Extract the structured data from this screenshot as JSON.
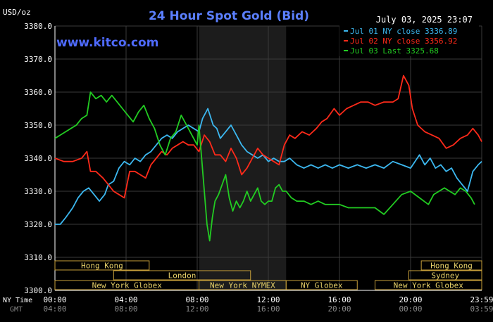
{
  "chart_data": {
    "type": "line",
    "title": "24 Hour Spot Gold (Bid)",
    "unit_label": "USD/oz",
    "timestamp": "July 03, 2025 23:07",
    "watermark": "www.kitco.com",
    "ylim": [
      3300,
      3380
    ],
    "yticks": [
      {
        "value": 3300,
        "label": "3300.0"
      },
      {
        "value": 3310,
        "label": "3310.0"
      },
      {
        "value": 3320,
        "label": "3320.0"
      },
      {
        "value": 3330,
        "label": "3330.0"
      },
      {
        "value": 3340,
        "label": "3340.0"
      },
      {
        "value": 3350,
        "label": "3350.0"
      },
      {
        "value": 3360,
        "label": "3360.0"
      },
      {
        "value": 3370,
        "label": "3370.0"
      },
      {
        "value": 3380,
        "label": "3380.0"
      }
    ],
    "xlim": [
      0,
      24
    ],
    "x_axis_rows": [
      {
        "name": "NY Time",
        "color": "#ffffff",
        "labels": [
          {
            "x": 0,
            "text": "00:00"
          },
          {
            "x": 4,
            "text": "04:00"
          },
          {
            "x": 8,
            "text": "08:00"
          },
          {
            "x": 12,
            "text": "12:00"
          },
          {
            "x": 16,
            "text": "16:00"
          },
          {
            "x": 20,
            "text": "20:00"
          },
          {
            "x": 24,
            "text": "23:59"
          }
        ]
      },
      {
        "name": "GMT",
        "color": "#8c8c8c",
        "labels": [
          {
            "x": 0,
            "text": "04:00"
          },
          {
            "x": 4,
            "text": "08:00"
          },
          {
            "x": 8,
            "text": "12:00"
          },
          {
            "x": 12,
            "text": "16:00"
          },
          {
            "x": 16,
            "text": "20:00"
          },
          {
            "x": 20,
            "text": "00:00"
          },
          {
            "x": 24,
            "text": "03:59"
          }
        ]
      }
    ],
    "highlight_range": [
      8.1,
      13.0
    ],
    "sessions": [
      {
        "label": "Hong Kong",
        "row": 0,
        "start": 0,
        "end": 5.3
      },
      {
        "label": "Hong Kong",
        "row": 0,
        "start": 20.6,
        "end": 24
      },
      {
        "label": "London",
        "row": 1,
        "start": 3.3,
        "end": 11.0
      },
      {
        "label": "Sydney",
        "row": 1,
        "start": 19.9,
        "end": 24
      },
      {
        "label": "New York Globex",
        "row": 2,
        "start": 0,
        "end": 8.1
      },
      {
        "label": "New York NYMEX",
        "row": 2,
        "start": 8.1,
        "end": 13.0
      },
      {
        "label": "NY Globex",
        "row": 2,
        "start": 13.0,
        "end": 17.0
      },
      {
        "label": "New York Globex",
        "row": 2,
        "start": 18.0,
        "end": 24
      }
    ],
    "series": [
      {
        "name": "Jul 01 NY close 3336.89",
        "color": "#3cb8f0",
        "x": [
          0.0,
          0.3,
          0.6,
          1.0,
          1.3,
          1.6,
          1.9,
          2.2,
          2.5,
          2.8,
          3.0,
          3.3,
          3.6,
          3.9,
          4.2,
          4.5,
          4.8,
          5.1,
          5.4,
          5.7,
          6.0,
          6.3,
          6.6,
          6.9,
          7.2,
          7.5,
          7.8,
          8.1,
          8.3,
          8.6,
          8.9,
          9.1,
          9.3,
          9.6,
          9.9,
          10.2,
          10.5,
          10.8,
          11.1,
          11.4,
          11.7,
          12.0,
          12.3,
          12.6,
          12.9,
          13.2,
          13.6,
          14.0,
          14.4,
          14.8,
          15.2,
          15.6,
          16.0,
          16.5,
          17.0,
          17.5,
          18.0,
          18.5,
          19.0,
          19.5,
          20.0,
          20.5,
          20.8,
          21.1,
          21.4,
          21.7,
          22.0,
          22.3,
          22.6,
          22.9,
          23.2,
          23.5,
          23.8,
          24.0
        ],
        "y": [
          3320,
          3320,
          3322,
          3325,
          3328,
          3330,
          3331,
          3329,
          3327,
          3329,
          3332,
          3333,
          3337,
          3339,
          3338,
          3340,
          3339,
          3341,
          3342,
          3344,
          3346,
          3347,
          3346,
          3348,
          3349,
          3350,
          3349,
          3348,
          3352,
          3355,
          3350,
          3349,
          3346,
          3348,
          3350,
          3347,
          3344,
          3342,
          3341,
          3340,
          3341,
          3339,
          3340,
          3339,
          3339,
          3340,
          3338,
          3337,
          3338,
          3337,
          3338,
          3337,
          3338,
          3337,
          3338,
          3337,
          3338,
          3337,
          3339,
          3338,
          3337,
          3341,
          3338,
          3340,
          3337,
          3338,
          3336,
          3337,
          3334,
          3332,
          3330,
          3336,
          3338,
          3339
        ]
      },
      {
        "name": "Jul 02 NY close 3356.92",
        "color": "#ff2a1a",
        "x": [
          0.0,
          0.5,
          1.0,
          1.5,
          1.8,
          2.0,
          2.3,
          2.7,
          3.0,
          3.3,
          3.6,
          3.9,
          4.2,
          4.5,
          4.8,
          5.1,
          5.4,
          5.7,
          6.0,
          6.3,
          6.6,
          6.9,
          7.2,
          7.5,
          7.8,
          8.1,
          8.4,
          8.7,
          9.0,
          9.3,
          9.6,
          9.9,
          10.2,
          10.5,
          10.8,
          11.1,
          11.4,
          11.7,
          12.0,
          12.3,
          12.6,
          12.9,
          13.2,
          13.5,
          13.9,
          14.3,
          14.7,
          15.0,
          15.3,
          15.7,
          16.0,
          16.4,
          16.8,
          17.2,
          17.6,
          18.0,
          18.5,
          19.0,
          19.3,
          19.6,
          19.9,
          20.1,
          20.4,
          20.8,
          21.2,
          21.6,
          22.0,
          22.4,
          22.8,
          23.2,
          23.5,
          23.8,
          24.0
        ],
        "y": [
          3340,
          3339,
          3339,
          3340,
          3342,
          3336,
          3336,
          3334,
          3332,
          3330,
          3329,
          3328,
          3336,
          3336,
          3335,
          3334,
          3338,
          3340,
          3342,
          3341,
          3343,
          3344,
          3345,
          3344,
          3344,
          3342,
          3347,
          3345,
          3341,
          3341,
          3339,
          3343,
          3340,
          3335,
          3337,
          3340,
          3343,
          3341,
          3340,
          3339,
          3338,
          3344,
          3347,
          3346,
          3348,
          3347,
          3349,
          3351,
          3352,
          3355,
          3353,
          3355,
          3356,
          3357,
          3357,
          3356,
          3357,
          3357,
          3358,
          3365,
          3362,
          3355,
          3350,
          3348,
          3347,
          3346,
          3343,
          3344,
          3346,
          3347,
          3349,
          3347,
          3345
        ]
      },
      {
        "name": "Jul 03 Last 3325.68",
        "color": "#22cc22",
        "x": [
          0.0,
          0.3,
          0.6,
          0.9,
          1.2,
          1.5,
          1.8,
          2.0,
          2.3,
          2.6,
          2.9,
          3.2,
          3.5,
          3.8,
          4.1,
          4.4,
          4.7,
          5.0,
          5.3,
          5.6,
          5.9,
          6.2,
          6.5,
          6.8,
          7.1,
          7.4,
          7.7,
          8.0,
          8.1,
          8.25,
          8.4,
          8.55,
          8.7,
          8.85,
          9.0,
          9.2,
          9.4,
          9.6,
          9.8,
          10.0,
          10.2,
          10.4,
          10.6,
          10.8,
          11.0,
          11.2,
          11.4,
          11.6,
          11.8,
          12.0,
          12.2,
          12.4,
          12.6,
          12.8,
          13.0,
          13.3,
          13.6,
          14.0,
          14.4,
          14.8,
          15.2,
          15.6,
          16.0,
          16.5,
          17.0,
          17.5,
          18.0,
          18.5,
          19.0,
          19.5,
          20.0,
          20.5,
          21.0,
          21.3,
          21.6,
          21.9,
          22.2,
          22.5,
          22.8,
          23.1,
          23.4,
          23.6
        ],
        "y": [
          3346,
          3347,
          3348,
          3349,
          3350,
          3352,
          3353,
          3360,
          3358,
          3359,
          3357,
          3359,
          3357,
          3355,
          3353,
          3351,
          3354,
          3356,
          3352,
          3349,
          3344,
          3341,
          3346,
          3348,
          3353,
          3350,
          3347,
          3344,
          3350,
          3340,
          3330,
          3320,
          3315,
          3322,
          3327,
          3329,
          3332,
          3335,
          3328,
          3324,
          3327,
          3325,
          3327,
          3330,
          3327,
          3329,
          3331,
          3327,
          3326,
          3327,
          3327,
          3331,
          3332,
          3330,
          3330,
          3328,
          3327,
          3327,
          3326,
          3327,
          3326,
          3326,
          3326,
          3325,
          3325,
          3325,
          3325,
          3323,
          3326,
          3329,
          3330,
          3328,
          3326,
          3329,
          3330,
          3331,
          3330,
          3329,
          3331,
          3330,
          3328,
          3326
        ]
      }
    ]
  }
}
